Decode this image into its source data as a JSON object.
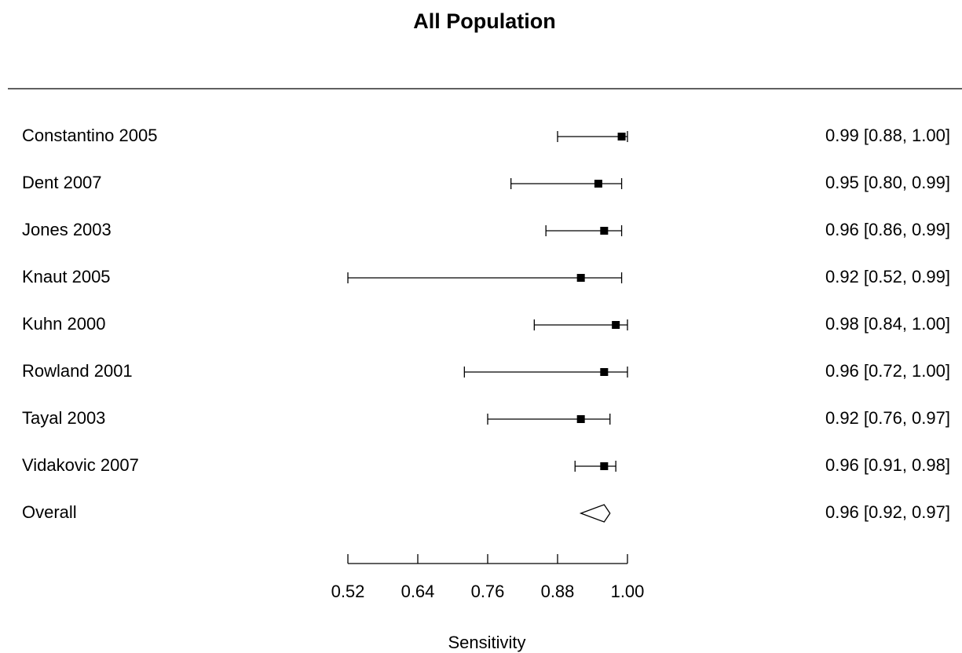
{
  "chart_data": {
    "type": "forest",
    "title": "All Population",
    "xlabel": "Sensitivity",
    "categories": [
      "Constantino 2005",
      "Dent 2007",
      "Jones 2003",
      "Knaut 2005",
      "Kuhn 2000",
      "Rowland 2001",
      "Tayal 2003",
      "Vidakovic 2007"
    ],
    "values": [
      0.99,
      0.95,
      0.96,
      0.92,
      0.98,
      0.96,
      0.92,
      0.96
    ],
    "lower": [
      0.88,
      0.8,
      0.86,
      0.52,
      0.84,
      0.72,
      0.76,
      0.91
    ],
    "upper": [
      1.0,
      0.99,
      0.99,
      0.99,
      1.0,
      1.0,
      0.97,
      0.98
    ],
    "value_labels": [
      "0.99 [0.88, 1.00]",
      "0.95 [0.80, 0.99]",
      "0.96 [0.86, 0.99]",
      "0.92 [0.52, 0.99]",
      "0.98 [0.84, 1.00]",
      "0.96 [0.72, 1.00]",
      "0.92 [0.76, 0.97]",
      "0.96 [0.91, 0.98]"
    ],
    "overall": {
      "name": "Overall",
      "value": 0.96,
      "lower": 0.92,
      "upper": 0.97,
      "value_label": "0.96 [0.92, 0.97]"
    },
    "xlim": [
      0.52,
      1.0
    ],
    "xticks": [
      0.52,
      0.64,
      0.76,
      0.88,
      {
        "value": 1.0,
        "label": "1.00"
      }
    ],
    "color": "#000000"
  }
}
